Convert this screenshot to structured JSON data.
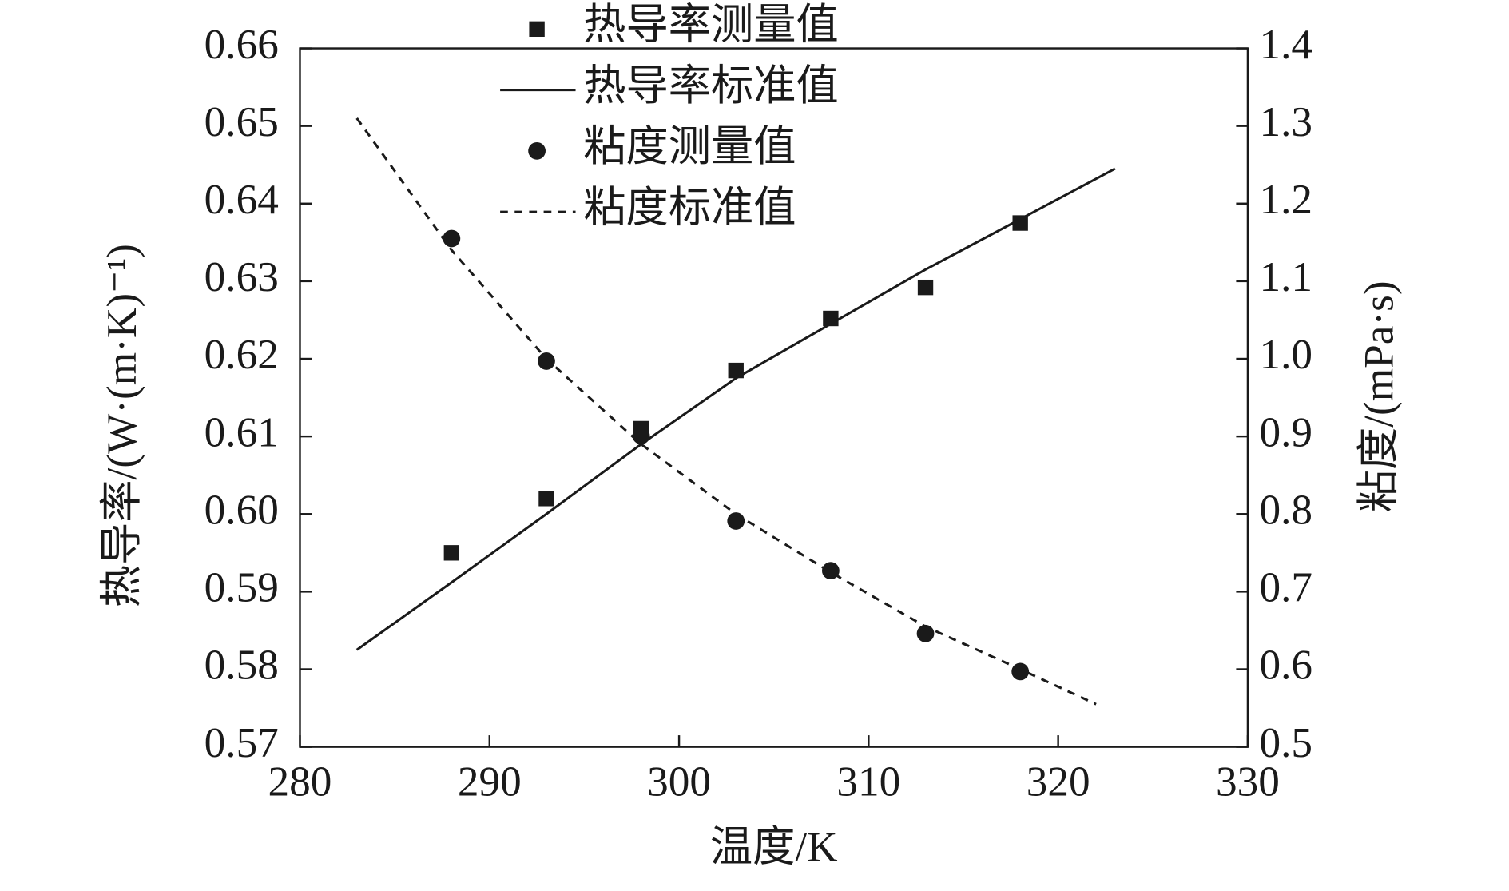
{
  "chart_data": {
    "type": "line",
    "x_label": "温度/K",
    "y_label": "热导率/(W·(m·K)⁻¹)",
    "y2_label": "粘度/(mPa·s)",
    "xlim": [
      280,
      330
    ],
    "xticks": [
      280,
      290,
      300,
      310,
      320,
      330
    ],
    "ylim": [
      0.57,
      0.66
    ],
    "yticks": [
      0.57,
      0.58,
      0.59,
      {
        "value": 0.6,
        "label": "0.60"
      },
      0.61,
      0.62,
      0.63,
      0.64,
      0.65,
      0.66
    ],
    "y2lim": [
      0.5,
      1.4
    ],
    "y2ticks": [
      0.5,
      0.6,
      0.7,
      0.8,
      0.9,
      {
        "value": 1.0,
        "label": "1.0"
      },
      1.1,
      1.2,
      1.3,
      1.4
    ],
    "series": [
      {
        "name": "热导率测量值",
        "style": "square",
        "color": "#1a1a1a",
        "x": [
          288,
          293,
          298,
          303,
          308,
          313,
          318
        ],
        "values": [
          0.595,
          0.602,
          0.611,
          0.6185,
          0.6252,
          0.6292,
          0.6375
        ]
      },
      {
        "name": "热导率标准值",
        "style": "solid",
        "color": "#1a1a1a",
        "x": [
          283,
          288,
          293,
          298,
          303,
          308,
          313,
          318,
          323
        ],
        "values": [
          0.5825,
          0.5912,
          0.6,
          0.609,
          0.6175,
          0.6245,
          0.6315,
          0.638,
          0.6445
        ]
      },
      {
        "name": "粘度测量值",
        "style": "circle",
        "color": "#1a1a1a",
        "axis": "y2",
        "x": [
          288,
          293,
          298,
          303,
          308,
          313,
          318
        ],
        "values": [
          1.155,
          0.997,
          0.901,
          0.791,
          0.727,
          0.646,
          0.597
        ]
      },
      {
        "name": "粘度标准值",
        "style": "dashed",
        "color": "#1a1a1a",
        "axis": "y2",
        "x": [
          283,
          288,
          293,
          298,
          303,
          308,
          313,
          318,
          322
        ],
        "values": [
          1.31,
          1.14,
          1.0,
          0.89,
          0.8,
          0.725,
          0.655,
          0.6,
          0.555
        ]
      }
    ]
  }
}
